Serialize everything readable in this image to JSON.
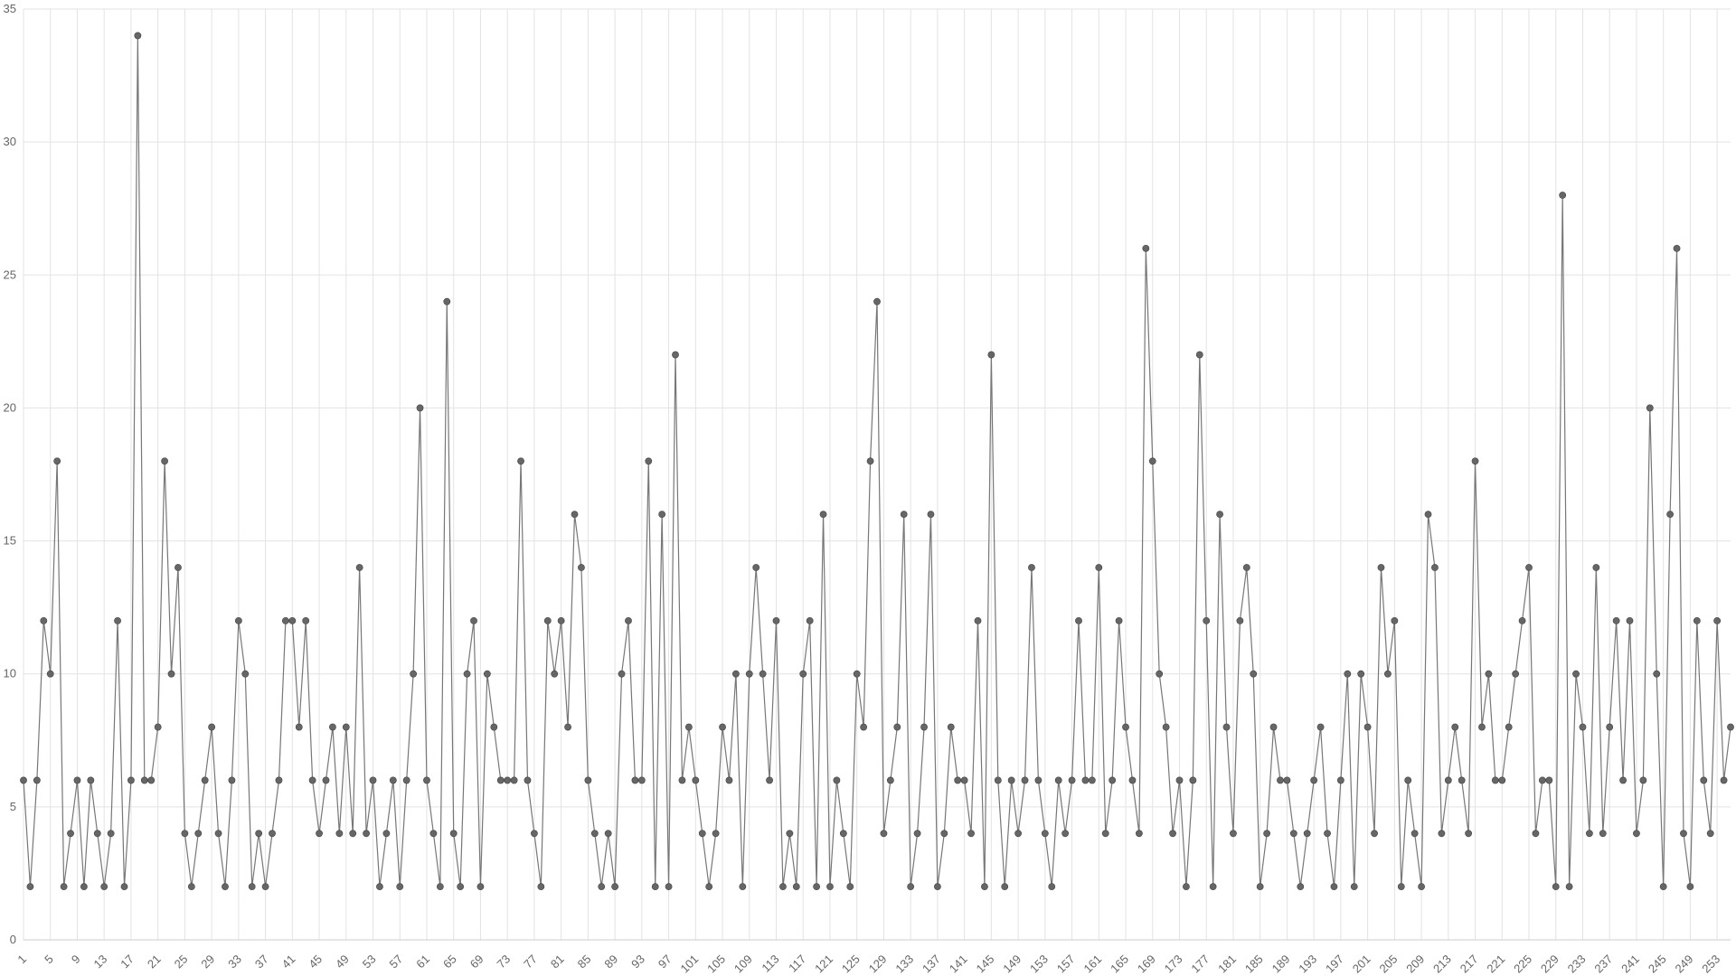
{
  "chart_data": {
    "type": "line",
    "title": "",
    "xlabel": "",
    "ylabel": "",
    "x_start": 1,
    "x_tick_step": 4,
    "ylim": [
      0,
      35
    ],
    "y_ticks": [
      0,
      5,
      10,
      15,
      20,
      25,
      30,
      35
    ],
    "grid": true,
    "legend": "none",
    "colors": {
      "line": "#777777",
      "marker": "#666666",
      "grid": "#e3e3e3",
      "axis": "#cccccc"
    },
    "series": [
      {
        "values": [
          6,
          2,
          6,
          12,
          10,
          18,
          2,
          4,
          6,
          2,
          6,
          4,
          2,
          4,
          12,
          2,
          6,
          34,
          6,
          6,
          8,
          18,
          10,
          14,
          4,
          2,
          4,
          6,
          8,
          4,
          2,
          6,
          12,
          10,
          2,
          4,
          2,
          4,
          6,
          12,
          12,
          8,
          12,
          6,
          4,
          6,
          8,
          4,
          8,
          4,
          14,
          4,
          6,
          2,
          4,
          6,
          2,
          6,
          10,
          20,
          6,
          4,
          2,
          24,
          4,
          2,
          10,
          12,
          2,
          10,
          8,
          6,
          6,
          6,
          18,
          6,
          4,
          2,
          12,
          10,
          12,
          8,
          16,
          14,
          6,
          4,
          2,
          4,
          2,
          10,
          12,
          6,
          6,
          18,
          2,
          16,
          2,
          22,
          6,
          8,
          6,
          4,
          2,
          4,
          8,
          6,
          10,
          2,
          10,
          14,
          10,
          6,
          12,
          2,
          4,
          2,
          10,
          12,
          2,
          16,
          2,
          6,
          4,
          2,
          10,
          8,
          18,
          24,
          4,
          6,
          8,
          16,
          2,
          4,
          8,
          16,
          2,
          4,
          8,
          6,
          6,
          4,
          12,
          2,
          22,
          6,
          2,
          6,
          4,
          6,
          14,
          6,
          4,
          2,
          6,
          4,
          6,
          12,
          6,
          6,
          14,
          4,
          6,
          12,
          8,
          6,
          4,
          26,
          18,
          10,
          8,
          4,
          6,
          2,
          6,
          22,
          12,
          2,
          16,
          8,
          4,
          12,
          14,
          10,
          2,
          4,
          8,
          6,
          6,
          4,
          2,
          4,
          6,
          8,
          4,
          2,
          6,
          10,
          2,
          10,
          8,
          4,
          14,
          10,
          12,
          2,
          6,
          4,
          2,
          16,
          14,
          4,
          6,
          8,
          6,
          4,
          18,
          8,
          10,
          6,
          6,
          8,
          10,
          12,
          14,
          4,
          6,
          6,
          2,
          28,
          2,
          10,
          8,
          4,
          14,
          4,
          8,
          12,
          6,
          12,
          4,
          6,
          20,
          10,
          2,
          16,
          26,
          4,
          2,
          12,
          6,
          4,
          12,
          6,
          8
        ]
      }
    ]
  }
}
